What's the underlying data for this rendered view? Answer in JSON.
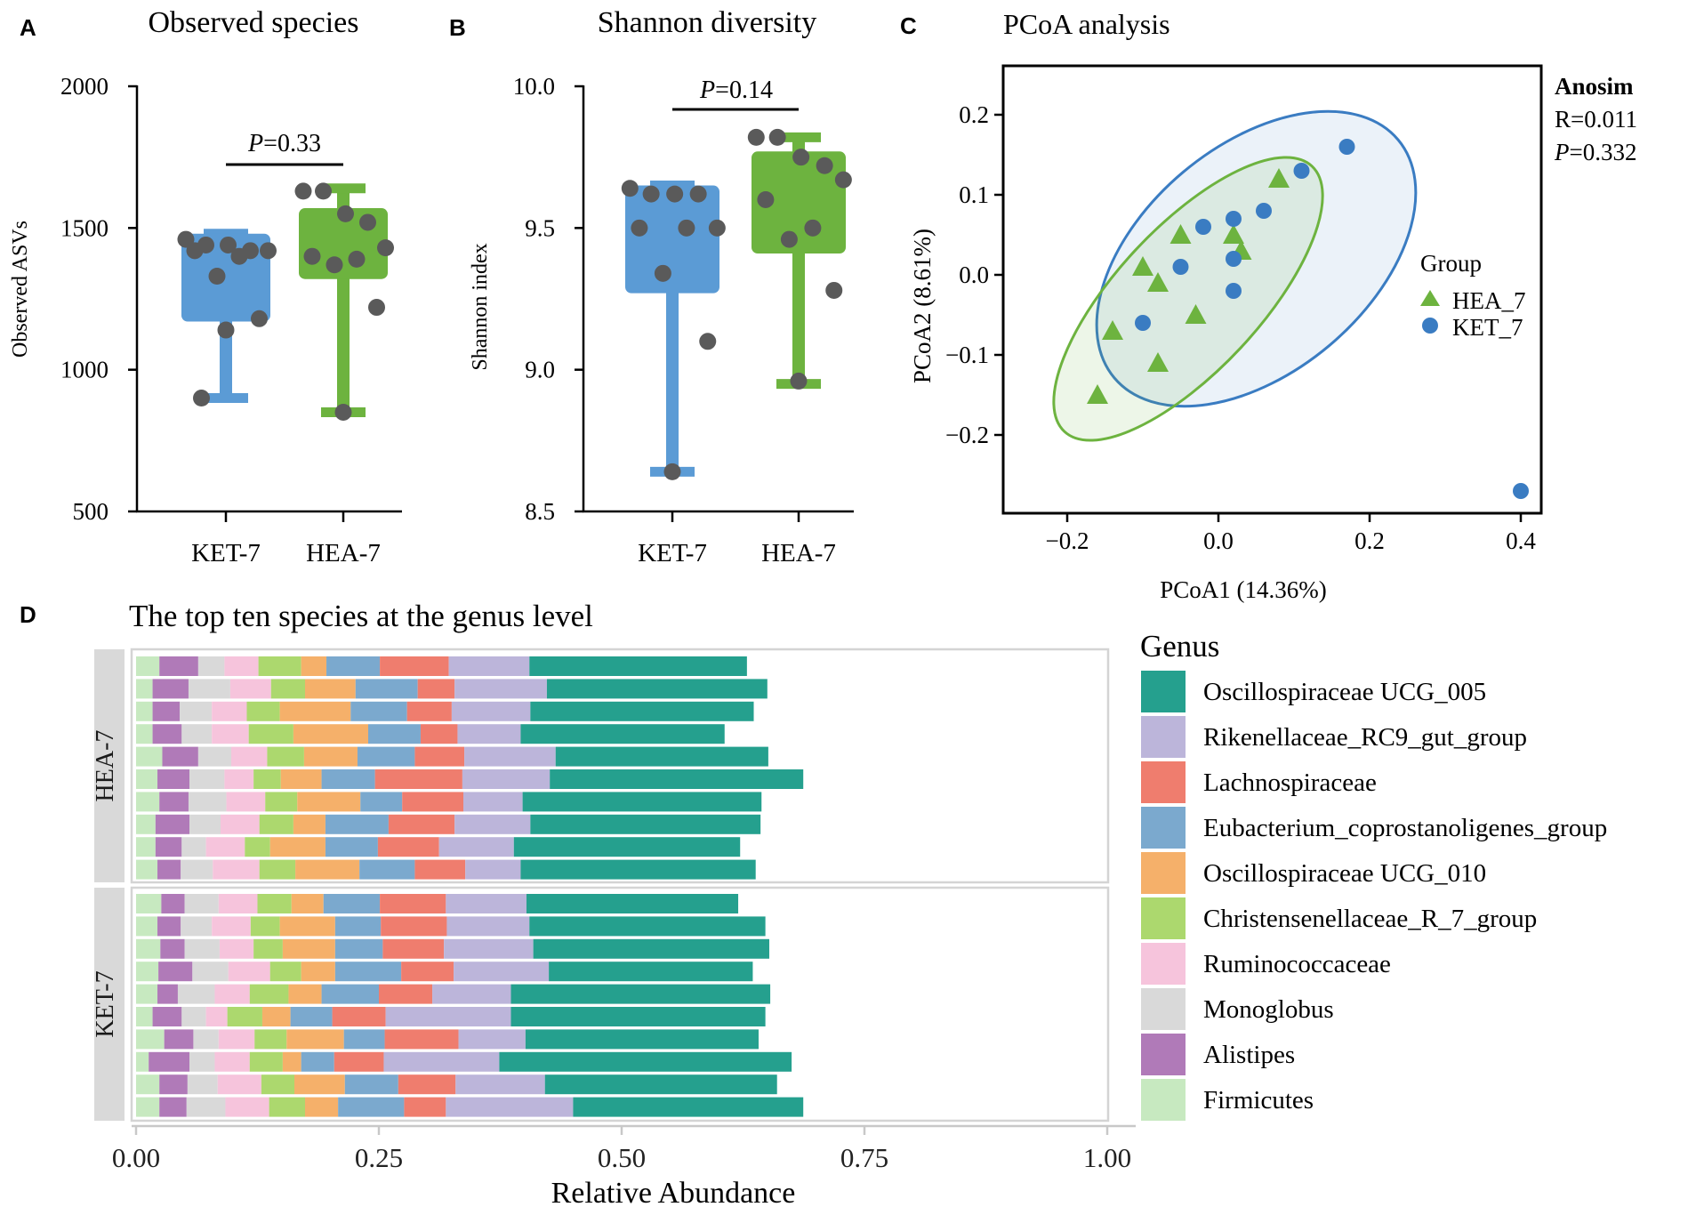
{
  "colors": {
    "blue_box": "#5b9bd5",
    "green_box": "#6db33f",
    "point": "#5a5a5a",
    "pcoa_blue": "#3a7cc2",
    "pcoa_green": "#6db33f",
    "strip_bg": "#d9d9d9"
  },
  "chart_data": [
    {
      "id": "A",
      "type": "box",
      "panel_label": "A",
      "title": "Observed species",
      "ylabel": "Observed ASVs",
      "ylim": [
        500,
        2000
      ],
      "yticks": [
        "2000",
        "1500",
        "1000",
        "500"
      ],
      "ytick_values": [
        2000,
        1500,
        1000,
        500
      ],
      "categories": [
        "KET-7",
        "HEA-7"
      ],
      "annotation": {
        "italic": "P",
        "rest": "=0.33"
      },
      "boxes": [
        {
          "name": "KET-7",
          "min": 900,
          "q1": 1170,
          "q3": 1480,
          "max": 1480,
          "points": [
            1460,
            1440,
            1440,
            1420,
            1420,
            1420,
            1400,
            1330,
            1180,
            1140,
            900
          ]
        },
        {
          "name": "HEA-7",
          "min": 850,
          "q1": 1320,
          "q3": 1570,
          "max": 1640,
          "points": [
            1630,
            1630,
            1550,
            1520,
            1430,
            1400,
            1390,
            1370,
            1220,
            850
          ]
        }
      ]
    },
    {
      "id": "B",
      "type": "box",
      "panel_label": "B",
      "title": "Shannon diversity",
      "ylabel": "Shannon index",
      "ylim": [
        8.5,
        10.0
      ],
      "yticks": [
        "10.0",
        "9.5",
        "9.0",
        "8.5"
      ],
      "ytick_values": [
        10.0,
        9.5,
        9.0,
        8.5
      ],
      "categories": [
        "KET-7",
        "HEA-7"
      ],
      "annotation": {
        "italic": "P",
        "rest": "=0.14"
      },
      "boxes": [
        {
          "name": "KET-7",
          "min": 8.64,
          "q1": 9.27,
          "q3": 9.65,
          "max": 9.65,
          "points": [
            9.64,
            9.62,
            9.62,
            9.62,
            9.5,
            9.5,
            9.5,
            9.34,
            9.1,
            8.64
          ]
        },
        {
          "name": "HEA-7",
          "min": 8.95,
          "q1": 9.41,
          "q3": 9.77,
          "max": 9.82,
          "points": [
            9.82,
            9.82,
            9.75,
            9.72,
            9.67,
            9.6,
            9.5,
            9.46,
            9.28,
            8.96
          ]
        }
      ]
    },
    {
      "id": "C",
      "type": "scatter",
      "panel_label": "C",
      "title": "PCoA analysis",
      "xlabel": "PCoA1 (14.36%)",
      "ylabel": "PCoA2 (8.61%)",
      "xlim": [
        -0.28,
        0.43
      ],
      "ylim": [
        -0.3,
        0.26
      ],
      "xticks": [
        -0.2,
        0.0,
        0.2,
        0.4
      ],
      "xtick_labels": [
        "−0.2",
        "0.0",
        "0.2",
        "0.4"
      ],
      "yticks": [
        0.2,
        0.1,
        0.0,
        -0.1,
        -0.2
      ],
      "ytick_labels": [
        "0.2",
        "0.1",
        "0.0",
        "−0.1",
        "−0.2"
      ],
      "stats": {
        "title": "Anosim",
        "r": "R=0.011",
        "p_italic": "P",
        "p_rest": "=0.332"
      },
      "legend_title": "Group",
      "series": [
        {
          "name": "HEA_7",
          "marker": "triangle",
          "x": [
            0.08,
            -0.05,
            0.02,
            0.03,
            -0.1,
            -0.08,
            -0.03,
            -0.14,
            -0.08,
            -0.16
          ],
          "y": [
            0.12,
            0.05,
            0.05,
            0.03,
            0.01,
            -0.01,
            -0.05,
            -0.07,
            -0.11,
            -0.15
          ]
        },
        {
          "name": "KET_7",
          "marker": "circle",
          "x": [
            0.17,
            0.11,
            0.06,
            0.02,
            -0.02,
            -0.05,
            0.02,
            -0.1,
            0.02,
            0.4
          ],
          "y": [
            0.16,
            0.13,
            0.08,
            0.07,
            0.06,
            0.01,
            0.02,
            -0.06,
            -0.02,
            -0.27
          ]
        }
      ],
      "ellipses": [
        {
          "group": "KET_7",
          "cx": 0.05,
          "cy": 0.02,
          "a": 0.245,
          "b": 0.15,
          "angle_deg": 40
        },
        {
          "group": "HEA_7",
          "cx": -0.04,
          "cy": -0.03,
          "a": 0.24,
          "b": 0.095,
          "angle_deg": 47
        }
      ]
    },
    {
      "id": "D",
      "type": "stacked-bar",
      "panel_label": "D",
      "title": "The top ten species at the genus level",
      "xlabel": "Relative Abundance",
      "xlim": [
        0,
        1.0
      ],
      "xticks": [
        "0.00",
        "0.25",
        "0.50",
        "0.75",
        "1.00"
      ],
      "xtick_values": [
        0,
        0.25,
        0.5,
        0.75,
        1.0
      ],
      "legend_title": "Genus",
      "genera": [
        {
          "name": "Firmicutes",
          "color": "#c7e9c0"
        },
        {
          "name": "Alistipes",
          "color": "#b07ab8"
        },
        {
          "name": "Monoglobus",
          "color": "#d9d9d9"
        },
        {
          "name": "Ruminococcaceae",
          "color": "#f6c4dc"
        },
        {
          "name": "Christensenellaceae_R_7_group",
          "color": "#acd86e"
        },
        {
          "name": "Oscillospiraceae UCG_010",
          "color": "#f5b06a"
        },
        {
          "name": "Eubacterium_coprostanoligenes_group",
          "color": "#7ba9ce"
        },
        {
          "name": "Lachnospiraceae",
          "color": "#ef7d6e"
        },
        {
          "name": "Rikenellaceae_RC9_gut_group",
          "color": "#bcb5da"
        },
        {
          "name": "Oscillospiraceae UCG_005",
          "color": "#25a08e"
        }
      ],
      "legend_order": [
        "Oscillospiraceae UCG_005",
        "Rikenellaceae_RC9_gut_group",
        "Lachnospiraceae",
        "Eubacterium_coprostanoligenes_group",
        "Oscillospiraceae UCG_010",
        "Christensenellaceae_R_7_group",
        "Ruminococcaceae",
        "Monoglobus",
        "Alistipes",
        "Firmicutes"
      ],
      "groups": [
        {
          "name": "HEA-7",
          "samples": [
            [
              0.024,
              0.04,
              0.027,
              0.035,
              0.044,
              0.026,
              0.055,
              0.071,
              0.083,
              0.224
            ],
            [
              0.017,
              0.037,
              0.043,
              0.042,
              0.035,
              0.052,
              0.064,
              0.038,
              0.095,
              0.227
            ],
            [
              0.017,
              0.028,
              0.033,
              0.036,
              0.034,
              0.073,
              0.058,
              0.046,
              0.081,
              0.23
            ],
            [
              0.017,
              0.03,
              0.031,
              0.038,
              0.046,
              0.077,
              0.054,
              0.038,
              0.065,
              0.21
            ],
            [
              0.027,
              0.037,
              0.034,
              0.037,
              0.038,
              0.055,
              0.059,
              0.051,
              0.094,
              0.219
            ],
            [
              0.022,
              0.033,
              0.036,
              0.03,
              0.028,
              0.042,
              0.055,
              0.09,
              0.09,
              0.261
            ],
            [
              0.024,
              0.03,
              0.039,
              0.04,
              0.033,
              0.065,
              0.043,
              0.063,
              0.061,
              0.246
            ],
            [
              0.02,
              0.035,
              0.032,
              0.04,
              0.035,
              0.033,
              0.065,
              0.068,
              0.078,
              0.237
            ],
            [
              0.02,
              0.027,
              0.025,
              0.04,
              0.026,
              0.057,
              0.054,
              0.063,
              0.077,
              0.233
            ],
            [
              0.022,
              0.024,
              0.033,
              0.048,
              0.037,
              0.066,
              0.057,
              0.052,
              0.057,
              0.242
            ]
          ]
        },
        {
          "name": "KET-7",
          "samples": [
            [
              0.026,
              0.024,
              0.035,
              0.04,
              0.035,
              0.033,
              0.058,
              0.068,
              0.083,
              0.218
            ],
            [
              0.022,
              0.024,
              0.032,
              0.04,
              0.03,
              0.057,
              0.047,
              0.068,
              0.085,
              0.243
            ],
            [
              0.025,
              0.025,
              0.036,
              0.035,
              0.03,
              0.054,
              0.049,
              0.063,
              0.092,
              0.243
            ],
            [
              0.023,
              0.035,
              0.037,
              0.043,
              0.032,
              0.035,
              0.068,
              0.054,
              0.098,
              0.21
            ],
            [
              0.022,
              0.021,
              0.038,
              0.036,
              0.04,
              0.034,
              0.059,
              0.055,
              0.081,
              0.267
            ],
            [
              0.017,
              0.03,
              0.025,
              0.022,
              0.036,
              0.029,
              0.043,
              0.055,
              0.129,
              0.262
            ],
            [
              0.029,
              0.03,
              0.026,
              0.037,
              0.033,
              0.059,
              0.042,
              0.076,
              0.069,
              0.24
            ],
            [
              0.013,
              0.042,
              0.026,
              0.036,
              0.034,
              0.019,
              0.034,
              0.051,
              0.119,
              0.301
            ],
            [
              0.024,
              0.029,
              0.031,
              0.045,
              0.034,
              0.052,
              0.055,
              0.059,
              0.092,
              0.239
            ],
            [
              0.024,
              0.028,
              0.04,
              0.045,
              0.037,
              0.034,
              0.068,
              0.043,
              0.131,
              0.237
            ]
          ]
        }
      ]
    }
  ]
}
